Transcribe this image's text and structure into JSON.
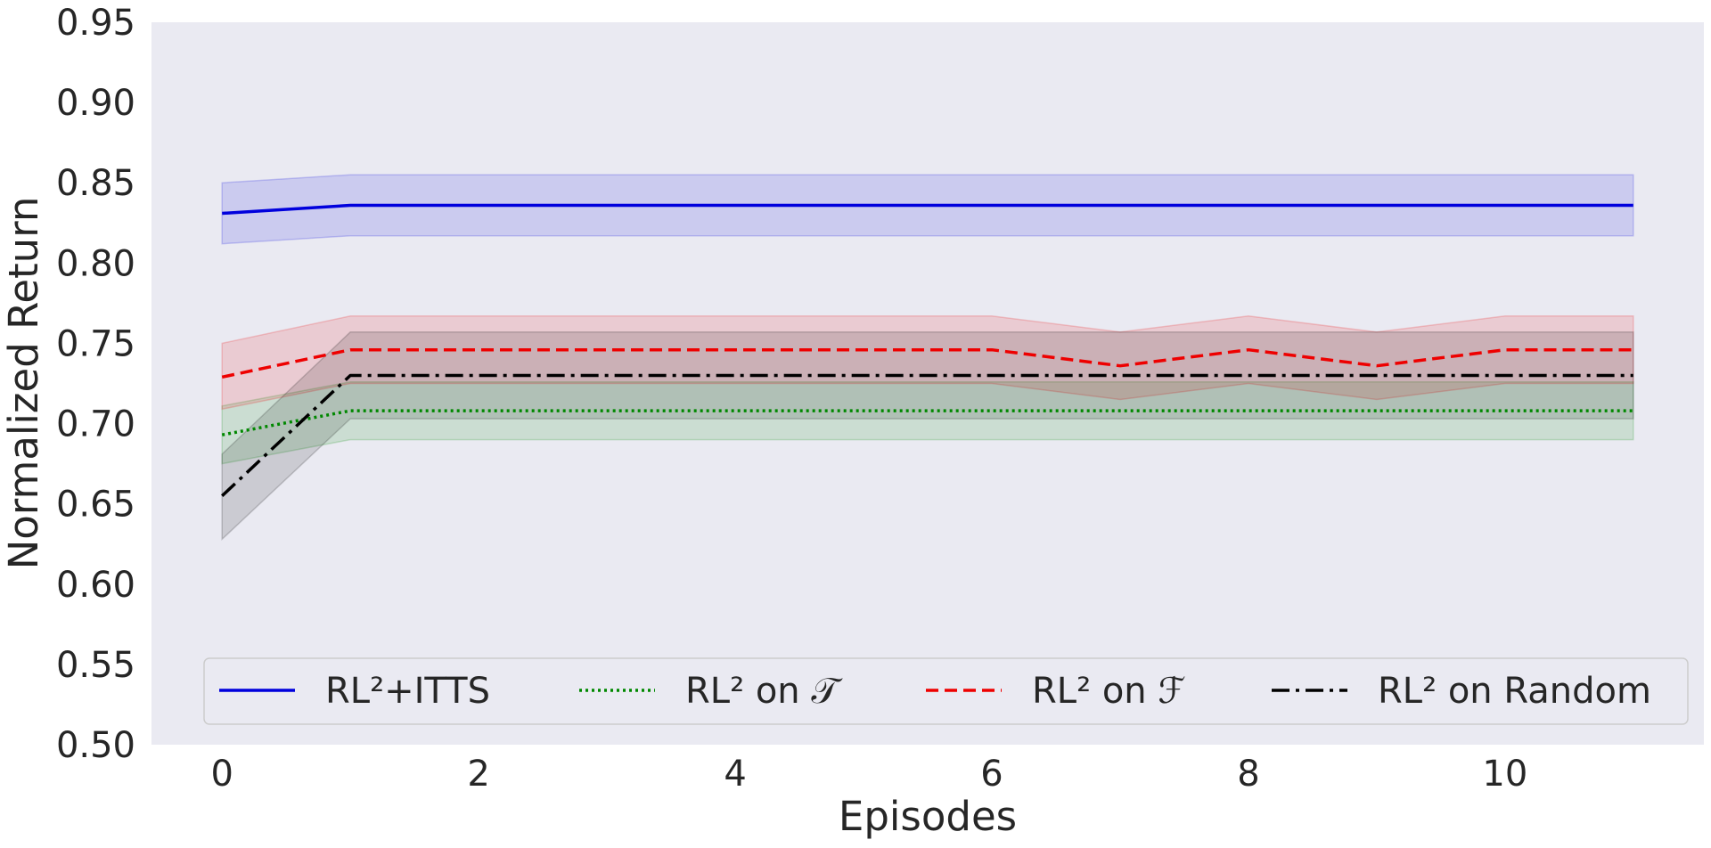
{
  "chart_data": {
    "type": "line",
    "title": "",
    "xlabel": "Episodes",
    "ylabel": "Normalized Return",
    "xlim": [
      -0.55,
      11.55
    ],
    "ylim": [
      0.5,
      0.95
    ],
    "xticks": [
      0,
      2,
      4,
      6,
      8,
      10
    ],
    "yticks": [
      0.5,
      0.55,
      0.6,
      0.65,
      0.7,
      0.75,
      0.8,
      0.85,
      0.9,
      0.95
    ],
    "grid": false,
    "legend_position": "lower-center",
    "x": [
      0,
      1,
      2,
      3,
      4,
      5,
      6,
      7,
      8,
      9,
      10,
      11
    ],
    "series": [
      {
        "name": "RL²+ITTS",
        "color": "#0000dd",
        "dash": "solid",
        "values": [
          0.831,
          0.836,
          0.836,
          0.836,
          0.836,
          0.836,
          0.836,
          0.836,
          0.836,
          0.836,
          0.836,
          0.836
        ],
        "lower": [
          0.812,
          0.817,
          0.817,
          0.817,
          0.817,
          0.817,
          0.817,
          0.817,
          0.817,
          0.817,
          0.817,
          0.817
        ],
        "upper": [
          0.85,
          0.855,
          0.855,
          0.855,
          0.855,
          0.855,
          0.855,
          0.855,
          0.855,
          0.855,
          0.855,
          0.855
        ]
      },
      {
        "name": "RL² on 𝒯",
        "color": "#008800",
        "dash": "dotted",
        "values": [
          0.693,
          0.708,
          0.708,
          0.708,
          0.708,
          0.708,
          0.708,
          0.708,
          0.708,
          0.708,
          0.708,
          0.708
        ],
        "lower": [
          0.675,
          0.69,
          0.69,
          0.69,
          0.69,
          0.69,
          0.69,
          0.69,
          0.69,
          0.69,
          0.69,
          0.69
        ],
        "upper": [
          0.711,
          0.726,
          0.726,
          0.726,
          0.726,
          0.726,
          0.726,
          0.726,
          0.726,
          0.726,
          0.726,
          0.726
        ]
      },
      {
        "name": "RL² on ℱ",
        "color": "#ee0000",
        "dash": "dashed",
        "values": [
          0.729,
          0.746,
          0.746,
          0.746,
          0.746,
          0.746,
          0.746,
          0.736,
          0.746,
          0.736,
          0.746,
          0.746
        ],
        "lower": [
          0.709,
          0.725,
          0.725,
          0.725,
          0.725,
          0.725,
          0.725,
          0.715,
          0.725,
          0.715,
          0.725,
          0.725
        ],
        "upper": [
          0.75,
          0.767,
          0.767,
          0.767,
          0.767,
          0.767,
          0.767,
          0.757,
          0.767,
          0.757,
          0.767,
          0.767
        ]
      },
      {
        "name": "RL² on Random",
        "color": "#000000",
        "dash": "dashdot",
        "values": [
          0.655,
          0.73,
          0.73,
          0.73,
          0.73,
          0.73,
          0.73,
          0.73,
          0.73,
          0.73,
          0.73,
          0.73
        ],
        "lower": [
          0.628,
          0.703,
          0.703,
          0.703,
          0.703,
          0.703,
          0.703,
          0.703,
          0.703,
          0.703,
          0.703,
          0.703
        ],
        "upper": [
          0.681,
          0.757,
          0.757,
          0.757,
          0.757,
          0.757,
          0.757,
          0.757,
          0.757,
          0.757,
          0.757,
          0.757
        ]
      }
    ]
  }
}
